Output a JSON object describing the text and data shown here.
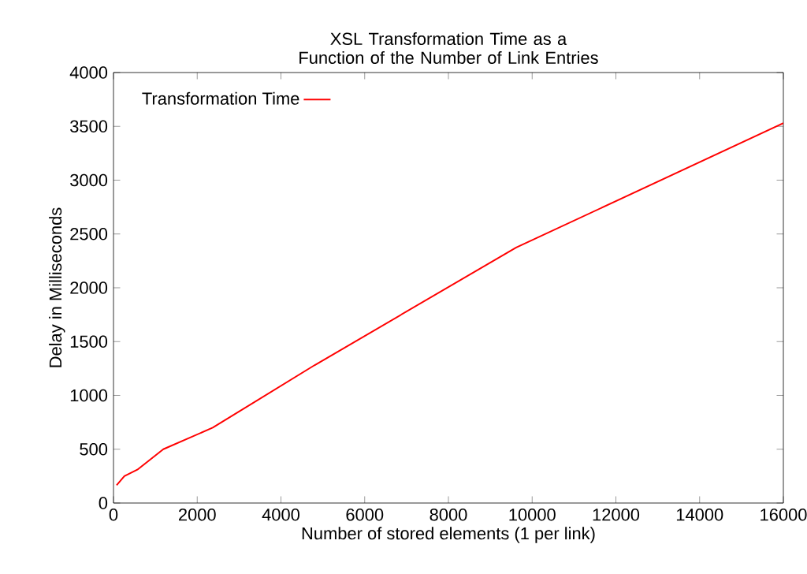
{
  "chart_data": {
    "type": "line",
    "title": "XSL Transformation Time as a Function of the Number of Link Entries",
    "xlabel": "Number of stored elements (1 per link)",
    "ylabel": "Delay in Milliseconds",
    "x": [
      75,
      260,
      570,
      1190,
      2370,
      4800,
      9620,
      16000
    ],
    "series": [
      {
        "name": "Transformation Time",
        "color": "#ff0000",
        "values": [
          165,
          250,
          310,
          500,
          700,
          1280,
          2374,
          3530
        ]
      }
    ],
    "xlim": [
      0,
      16000
    ],
    "ylim": [
      0,
      4000
    ],
    "xticks": [
      0,
      2000,
      4000,
      6000,
      8000,
      10000,
      12000,
      14000,
      16000
    ],
    "yticks": [
      0,
      500,
      1000,
      1500,
      2000,
      2500,
      3000,
      3500,
      4000
    ],
    "grid": false,
    "legend": "top left",
    "marker": "none",
    "line_style": "solid"
  }
}
